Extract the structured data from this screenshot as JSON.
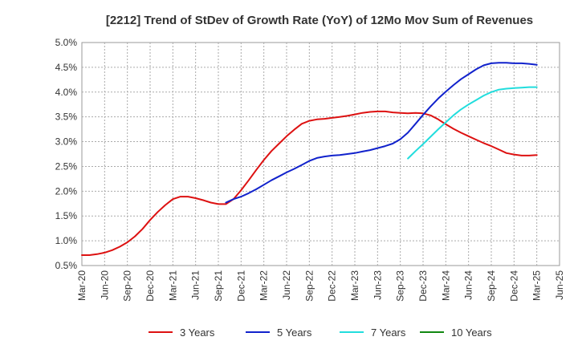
{
  "chart_data": {
    "type": "line",
    "title": "[2212]  Trend of StDev of Growth Rate (YoY) of 12Mo Mov Sum of Revenues",
    "xlabel": "",
    "ylabel": "",
    "ylim": [
      0.005,
      0.05
    ],
    "y_ticks": [
      0.005,
      0.01,
      0.015,
      0.02,
      0.025,
      0.03,
      0.035,
      0.04,
      0.045,
      0.05
    ],
    "y_tick_labels": [
      "0.5%",
      "1.0%",
      "1.5%",
      "2.0%",
      "2.5%",
      "3.0%",
      "3.5%",
      "4.0%",
      "4.5%",
      "5.0%"
    ],
    "x_tick_labels": [
      "Mar-20",
      "Jun-20",
      "Sep-20",
      "Dec-20",
      "Mar-21",
      "Jun-21",
      "Sep-21",
      "Dec-21",
      "Mar-22",
      "Jun-22",
      "Sep-22",
      "Dec-22",
      "Mar-23",
      "Jun-23",
      "Sep-23",
      "Dec-23",
      "Mar-24",
      "Jun-24",
      "Sep-24",
      "Dec-24",
      "Mar-25",
      "Jun-25"
    ],
    "x_range_months": [
      0,
      63
    ],
    "grid": true,
    "legend_position": "bottom",
    "series": [
      {
        "name": "3 Years",
        "color": "#dd1111",
        "x": [
          0,
          1,
          2,
          3,
          4,
          5,
          6,
          7,
          8,
          9,
          10,
          11,
          12,
          13,
          14,
          15,
          16,
          17,
          18,
          19,
          20,
          21,
          22,
          23,
          24,
          25,
          26,
          27,
          28,
          29,
          30,
          31,
          32,
          33,
          34,
          35,
          36,
          37,
          38,
          39,
          40,
          41,
          42,
          43,
          44,
          45,
          46,
          47,
          48,
          49,
          50,
          51,
          52,
          53,
          54,
          55,
          56,
          57,
          58,
          59,
          60
        ],
        "values": [
          0.0071,
          0.0071,
          0.0073,
          0.0076,
          0.0081,
          0.0088,
          0.0097,
          0.0109,
          0.0124,
          0.0142,
          0.0158,
          0.0172,
          0.0184,
          0.0189,
          0.0189,
          0.0186,
          0.0182,
          0.0177,
          0.0174,
          0.0174,
          0.0184,
          0.0202,
          0.0222,
          0.0243,
          0.0263,
          0.0281,
          0.0296,
          0.0311,
          0.0324,
          0.0336,
          0.0342,
          0.0345,
          0.0346,
          0.0348,
          0.035,
          0.0352,
          0.0355,
          0.0358,
          0.036,
          0.0361,
          0.0361,
          0.0359,
          0.0358,
          0.0357,
          0.0358,
          0.0357,
          0.0353,
          0.0345,
          0.0335,
          0.0326,
          0.0318,
          0.0311,
          0.0304,
          0.0297,
          0.0291,
          0.0284,
          0.0277,
          0.0274,
          0.0272,
          0.0272,
          0.0273
        ]
      },
      {
        "name": "5 Years",
        "color": "#1122cc",
        "x": [
          19,
          20,
          21,
          22,
          23,
          24,
          25,
          26,
          27,
          28,
          29,
          30,
          31,
          32,
          33,
          34,
          35,
          36,
          37,
          38,
          39,
          40,
          41,
          42,
          43,
          44,
          45,
          46,
          47,
          48,
          49,
          50,
          51,
          52,
          53,
          54,
          55,
          56,
          57,
          58,
          59,
          60
        ],
        "values": [
          0.0177,
          0.0184,
          0.0189,
          0.0196,
          0.0204,
          0.0213,
          0.0222,
          0.023,
          0.0238,
          0.0245,
          0.0253,
          0.0261,
          0.0267,
          0.027,
          0.0272,
          0.0273,
          0.0275,
          0.0277,
          0.028,
          0.0283,
          0.0287,
          0.0291,
          0.0296,
          0.0305,
          0.0318,
          0.0336,
          0.0354,
          0.0371,
          0.0387,
          0.0401,
          0.0414,
          0.0426,
          0.0436,
          0.0446,
          0.0454,
          0.0458,
          0.0459,
          0.0459,
          0.0458,
          0.0458,
          0.0457,
          0.0455
        ]
      },
      {
        "name": "7 Years",
        "color": "#22dddd",
        "x": [
          43,
          44,
          45,
          46,
          47,
          48,
          49,
          50,
          51,
          52,
          53,
          54,
          55,
          56,
          57,
          58,
          59,
          60
        ],
        "values": [
          0.0266,
          0.0281,
          0.0295,
          0.031,
          0.0325,
          0.0339,
          0.0353,
          0.0365,
          0.0375,
          0.0384,
          0.0393,
          0.04,
          0.0405,
          0.0407,
          0.0408,
          0.0409,
          0.041,
          0.041
        ]
      },
      {
        "name": "10 Years",
        "color": "#118811",
        "x": [],
        "values": []
      }
    ]
  }
}
